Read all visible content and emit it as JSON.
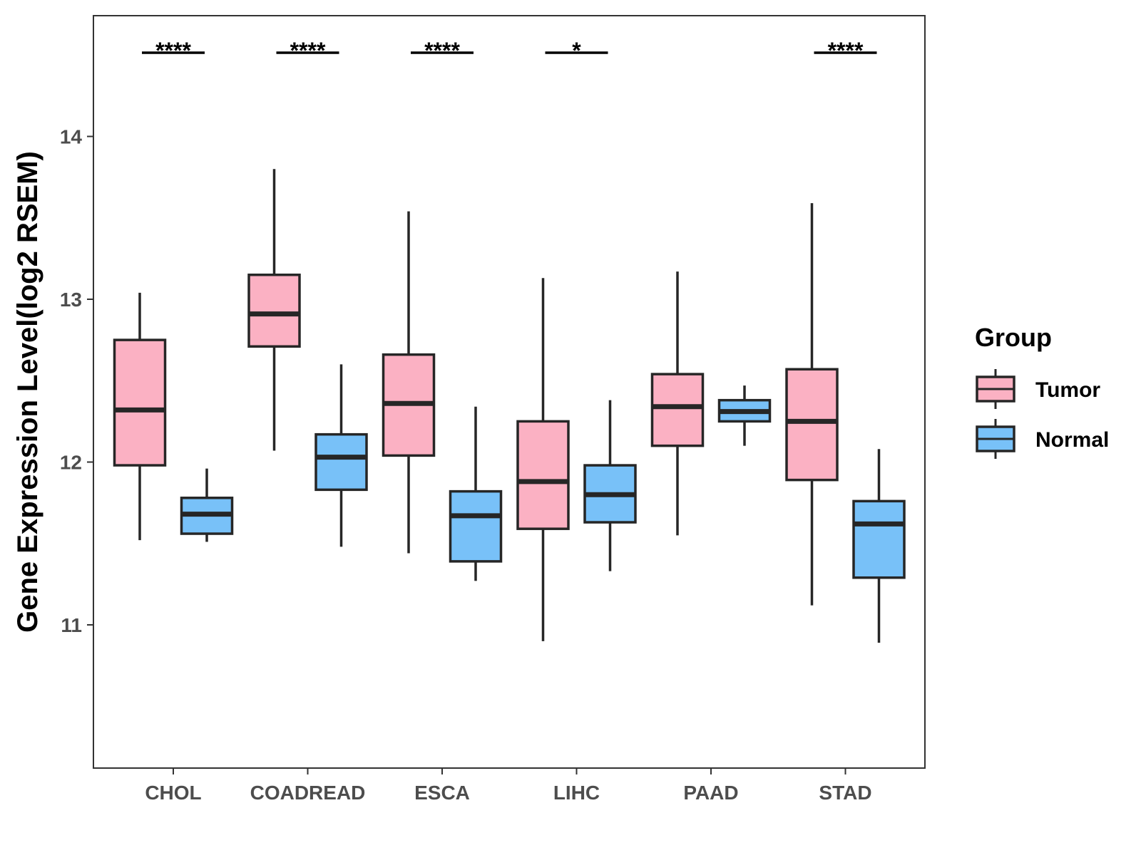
{
  "chart_data": {
    "type": "boxplot",
    "title": "",
    "xlabel": "",
    "ylabel": "Gene Expression Level(log2 RSEM)",
    "ylim": [
      10.15,
      14.75
    ],
    "yticks": [
      11,
      12,
      13,
      14
    ],
    "categories": [
      "CHOL",
      "COADREAD",
      "ESCA",
      "LIHC",
      "PAAD",
      "STAD"
    ],
    "series": [
      {
        "name": "Tumor",
        "color": "#FBB1C3",
        "boxes": [
          {
            "min": 11.52,
            "q1": 11.98,
            "median": 12.32,
            "q3": 12.75,
            "max": 13.04
          },
          {
            "min": 12.07,
            "q1": 12.71,
            "median": 12.91,
            "q3": 13.15,
            "max": 13.8
          },
          {
            "min": 11.44,
            "q1": 12.04,
            "median": 12.36,
            "q3": 12.66,
            "max": 13.54
          },
          {
            "min": 10.9,
            "q1": 11.59,
            "median": 11.88,
            "q3": 12.25,
            "max": 13.13
          },
          {
            "min": 11.55,
            "q1": 12.1,
            "median": 12.34,
            "q3": 12.54,
            "max": 13.17
          },
          {
            "min": 11.12,
            "q1": 11.89,
            "median": 12.25,
            "q3": 12.57,
            "max": 13.59
          }
        ]
      },
      {
        "name": "Normal",
        "color": "#78C1F8",
        "boxes": [
          {
            "min": 11.51,
            "q1": 11.56,
            "median": 11.68,
            "q3": 11.78,
            "max": 11.96
          },
          {
            "min": 11.48,
            "q1": 11.83,
            "median": 12.03,
            "q3": 12.17,
            "max": 12.6
          },
          {
            "min": 11.27,
            "q1": 11.39,
            "median": 11.67,
            "q3": 11.82,
            "max": 12.34
          },
          {
            "min": 11.33,
            "q1": 11.63,
            "median": 11.8,
            "q3": 11.98,
            "max": 12.38
          },
          {
            "min": 12.1,
            "q1": 12.25,
            "median": 12.31,
            "q3": 12.38,
            "max": 12.47
          },
          {
            "min": 10.89,
            "q1": 11.29,
            "median": 11.62,
            "q3": 11.76,
            "max": 12.08
          }
        ]
      }
    ],
    "significance": [
      "****",
      "****",
      "****",
      "*",
      "",
      "****"
    ],
    "legend": {
      "title": "Group",
      "position": "right"
    }
  }
}
